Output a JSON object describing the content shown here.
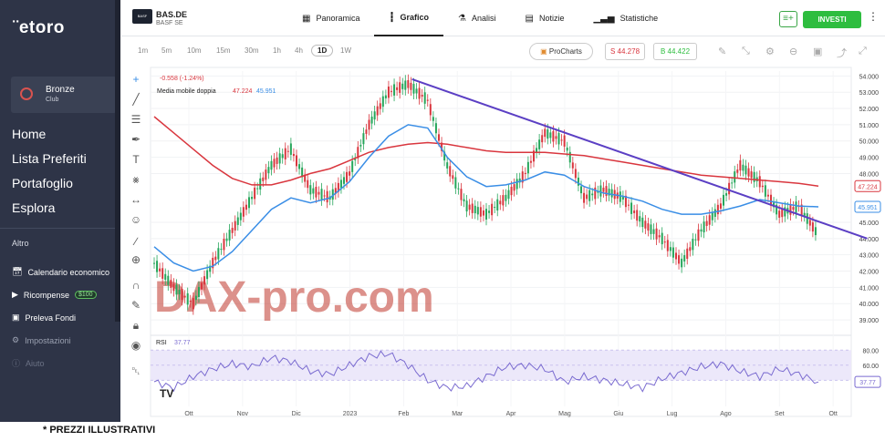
{
  "sidebar": {
    "logo": "¨etoro",
    "user": {
      "name": "Bronze",
      "sub": "Club"
    },
    "main_items": [
      "Home",
      "Lista Preferiti",
      "Portafoglio",
      "Esplora"
    ],
    "section_label": "Altro",
    "sub_items": [
      {
        "label": "Calendario economico",
        "icon": "calendar-icon"
      },
      {
        "label": "Ricompense",
        "icon": "megaphone-icon",
        "badge": "$100"
      },
      {
        "label": "Preleva Fondi",
        "icon": "wallet-icon"
      },
      {
        "label": "Impostazioni",
        "icon": "gear-icon"
      },
      {
        "label": "Aiuto",
        "icon": "help-icon"
      }
    ]
  },
  "header": {
    "ticker_logo": "BASF",
    "symbol": "BAS.DE",
    "company": "BASF SE",
    "tabs": [
      {
        "label": "Panoramica",
        "icon": "grid-icon"
      },
      {
        "label": "Grafico",
        "icon": "candles-icon"
      },
      {
        "label": "Analisi",
        "icon": "flask-icon"
      },
      {
        "label": "Notizie",
        "icon": "news-icon"
      },
      {
        "label": "Statistiche",
        "icon": "stats-icon"
      }
    ],
    "active_tab": "Grafico",
    "invest_label": "INVESTI"
  },
  "toolbar": {
    "timeframes": [
      "1m",
      "5m",
      "10m",
      "15m",
      "30m",
      "1h",
      "4h",
      "1D",
      "1W"
    ],
    "active_timeframe": "1D",
    "procharts_label": "ProCharts",
    "sell_price": "S 44.278",
    "buy_price": "B 44.422"
  },
  "chart_data": {
    "type": "line",
    "change_text": "-0.558 (-1.24%)",
    "indicator_label": "Media mobile doppia",
    "indicator_value_1": "47.224",
    "indicator_value_2": "45.951",
    "price_axis_ticks": [
      "54.000",
      "53.000",
      "52.000",
      "51.000",
      "50.000",
      "49.000",
      "48.000",
      "47.224",
      "45.951",
      "45.000",
      "44.000",
      "43.000",
      "42.000",
      "41.000",
      "40.000",
      "39.000"
    ],
    "ylim": [
      38.5,
      54.3
    ],
    "x_labels": [
      "Ott",
      "Nov",
      "Dic",
      "2023",
      "Feb",
      "Mar",
      "Apr",
      "Mag",
      "Giu",
      "Lug",
      "Ago",
      "Set",
      "Ott"
    ],
    "price_approx": [
      42.5,
      41.0,
      40.0,
      42.5,
      44.5,
      46.5,
      48.5,
      49.5,
      47.0,
      46.5,
      48.0,
      51.0,
      53.0,
      53.5,
      52.5,
      48.5,
      46.0,
      45.5,
      46.5,
      48.0,
      50.5,
      50.0,
      46.5,
      47.0,
      46.5,
      45.0,
      44.0,
      42.5,
      44.5,
      46.0,
      48.5,
      47.5,
      45.5,
      46.0,
      44.2
    ],
    "ma_fast_approx": [
      43.5,
      42.5,
      42.0,
      42.3,
      43.2,
      44.5,
      45.8,
      46.5,
      46.2,
      46.5,
      47.5,
      49.0,
      50.3,
      51.0,
      50.8,
      49.0,
      47.8,
      47.2,
      47.3,
      47.6,
      48.1,
      47.9,
      47.2,
      46.8,
      46.6,
      46.3,
      45.8,
      45.5,
      45.5,
      45.7,
      46.0,
      46.4,
      46.2,
      46.0,
      45.95
    ],
    "ma_slow_approx": [
      51.5,
      50.5,
      49.5,
      48.5,
      47.7,
      47.3,
      47.3,
      47.6,
      48.0,
      48.3,
      48.8,
      49.3,
      49.6,
      49.8,
      49.9,
      49.8,
      49.6,
      49.4,
      49.3,
      49.3,
      49.3,
      49.2,
      49.1,
      48.9,
      48.7,
      48.5,
      48.3,
      48.1,
      47.9,
      47.8,
      47.7,
      47.6,
      47.5,
      47.4,
      47.224
    ],
    "trendline": {
      "start": [
        13.2,
        53.8
      ],
      "end": [
        36.5,
        44.0
      ]
    },
    "watermark": "DAX-pro.com",
    "rsi": {
      "label": "RSI",
      "value": "37.77",
      "ticks": [
        "80.00",
        "60.00",
        "40.00",
        "37.77"
      ],
      "ylim": [
        15,
        90
      ],
      "values_approx": [
        38,
        30,
        45,
        55,
        62,
        58,
        70,
        65,
        52,
        48,
        60,
        72,
        75,
        60,
        40,
        30,
        32,
        45,
        58,
        60,
        55,
        38,
        45,
        40,
        35,
        30,
        42,
        50,
        58,
        62,
        52,
        45,
        55,
        48,
        37.77
      ]
    },
    "colors": {
      "up": "#26a65b",
      "down": "#d9363e",
      "ma_fast": "#3a8ee6",
      "ma_slow": "#d9363e",
      "trendline": "#5b3fc4",
      "rsi": "#7a6bd0",
      "rsi_band": "#ece8fa"
    }
  },
  "caption": "* PREZZI ILLUSTRATIVI"
}
